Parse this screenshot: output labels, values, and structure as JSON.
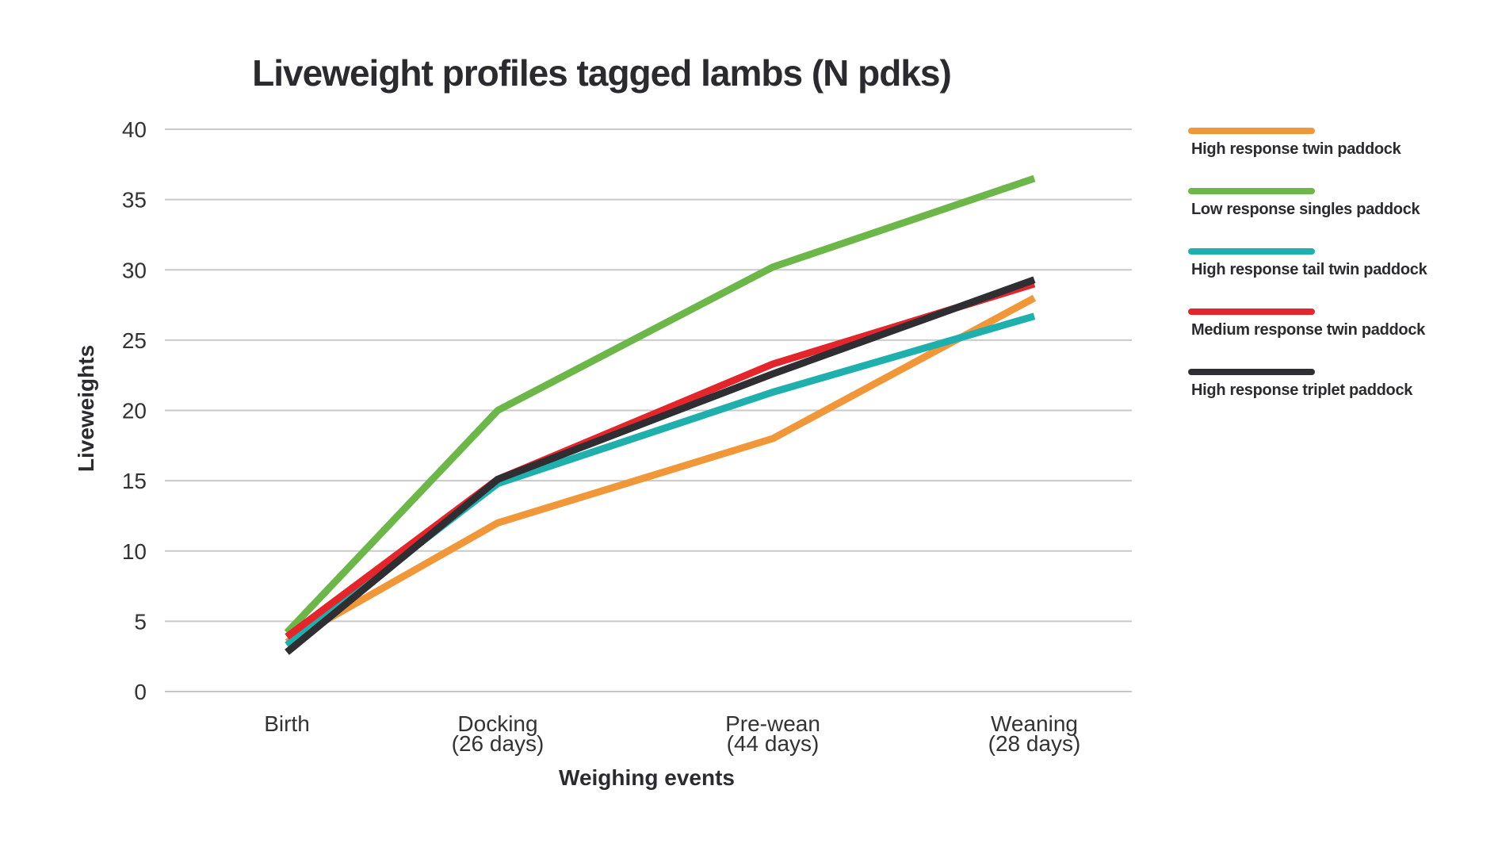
{
  "chart_data": {
    "type": "line",
    "title": "Liveweight profiles tagged lambs (N pdks)",
    "xlabel": "Weighing events",
    "ylabel": "Liveweights",
    "ylim": [
      0,
      40
    ],
    "yticks": [
      0,
      5,
      10,
      15,
      20,
      25,
      30,
      35,
      40
    ],
    "grid": true,
    "legend_position": "right",
    "categories": [
      [
        "Birth"
      ],
      [
        "Docking",
        "(26 days)"
      ],
      [
        "Pre-wean",
        "(44 days)"
      ],
      [
        "Weaning",
        "(28 days)"
      ]
    ],
    "series": [
      {
        "name": "High response twin paddock",
        "color": "#F0973A",
        "values": [
          3.5,
          12,
          18,
          28
        ]
      },
      {
        "name": "Low response singles paddock",
        "color": "#6DB74A",
        "values": [
          4.2,
          20,
          30.2,
          36.5
        ]
      },
      {
        "name": "High response tail twin paddock",
        "color": "#1FB0AE",
        "values": [
          3.3,
          14.8,
          21.3,
          26.7
        ]
      },
      {
        "name": "Medium response twin paddock",
        "color": "#E3262B",
        "values": [
          3.9,
          15.1,
          23.3,
          29
        ]
      },
      {
        "name": "High response triplet paddock",
        "color": "#2E2E33",
        "values": [
          2.8,
          15.1,
          22.6,
          29.3
        ]
      }
    ]
  }
}
